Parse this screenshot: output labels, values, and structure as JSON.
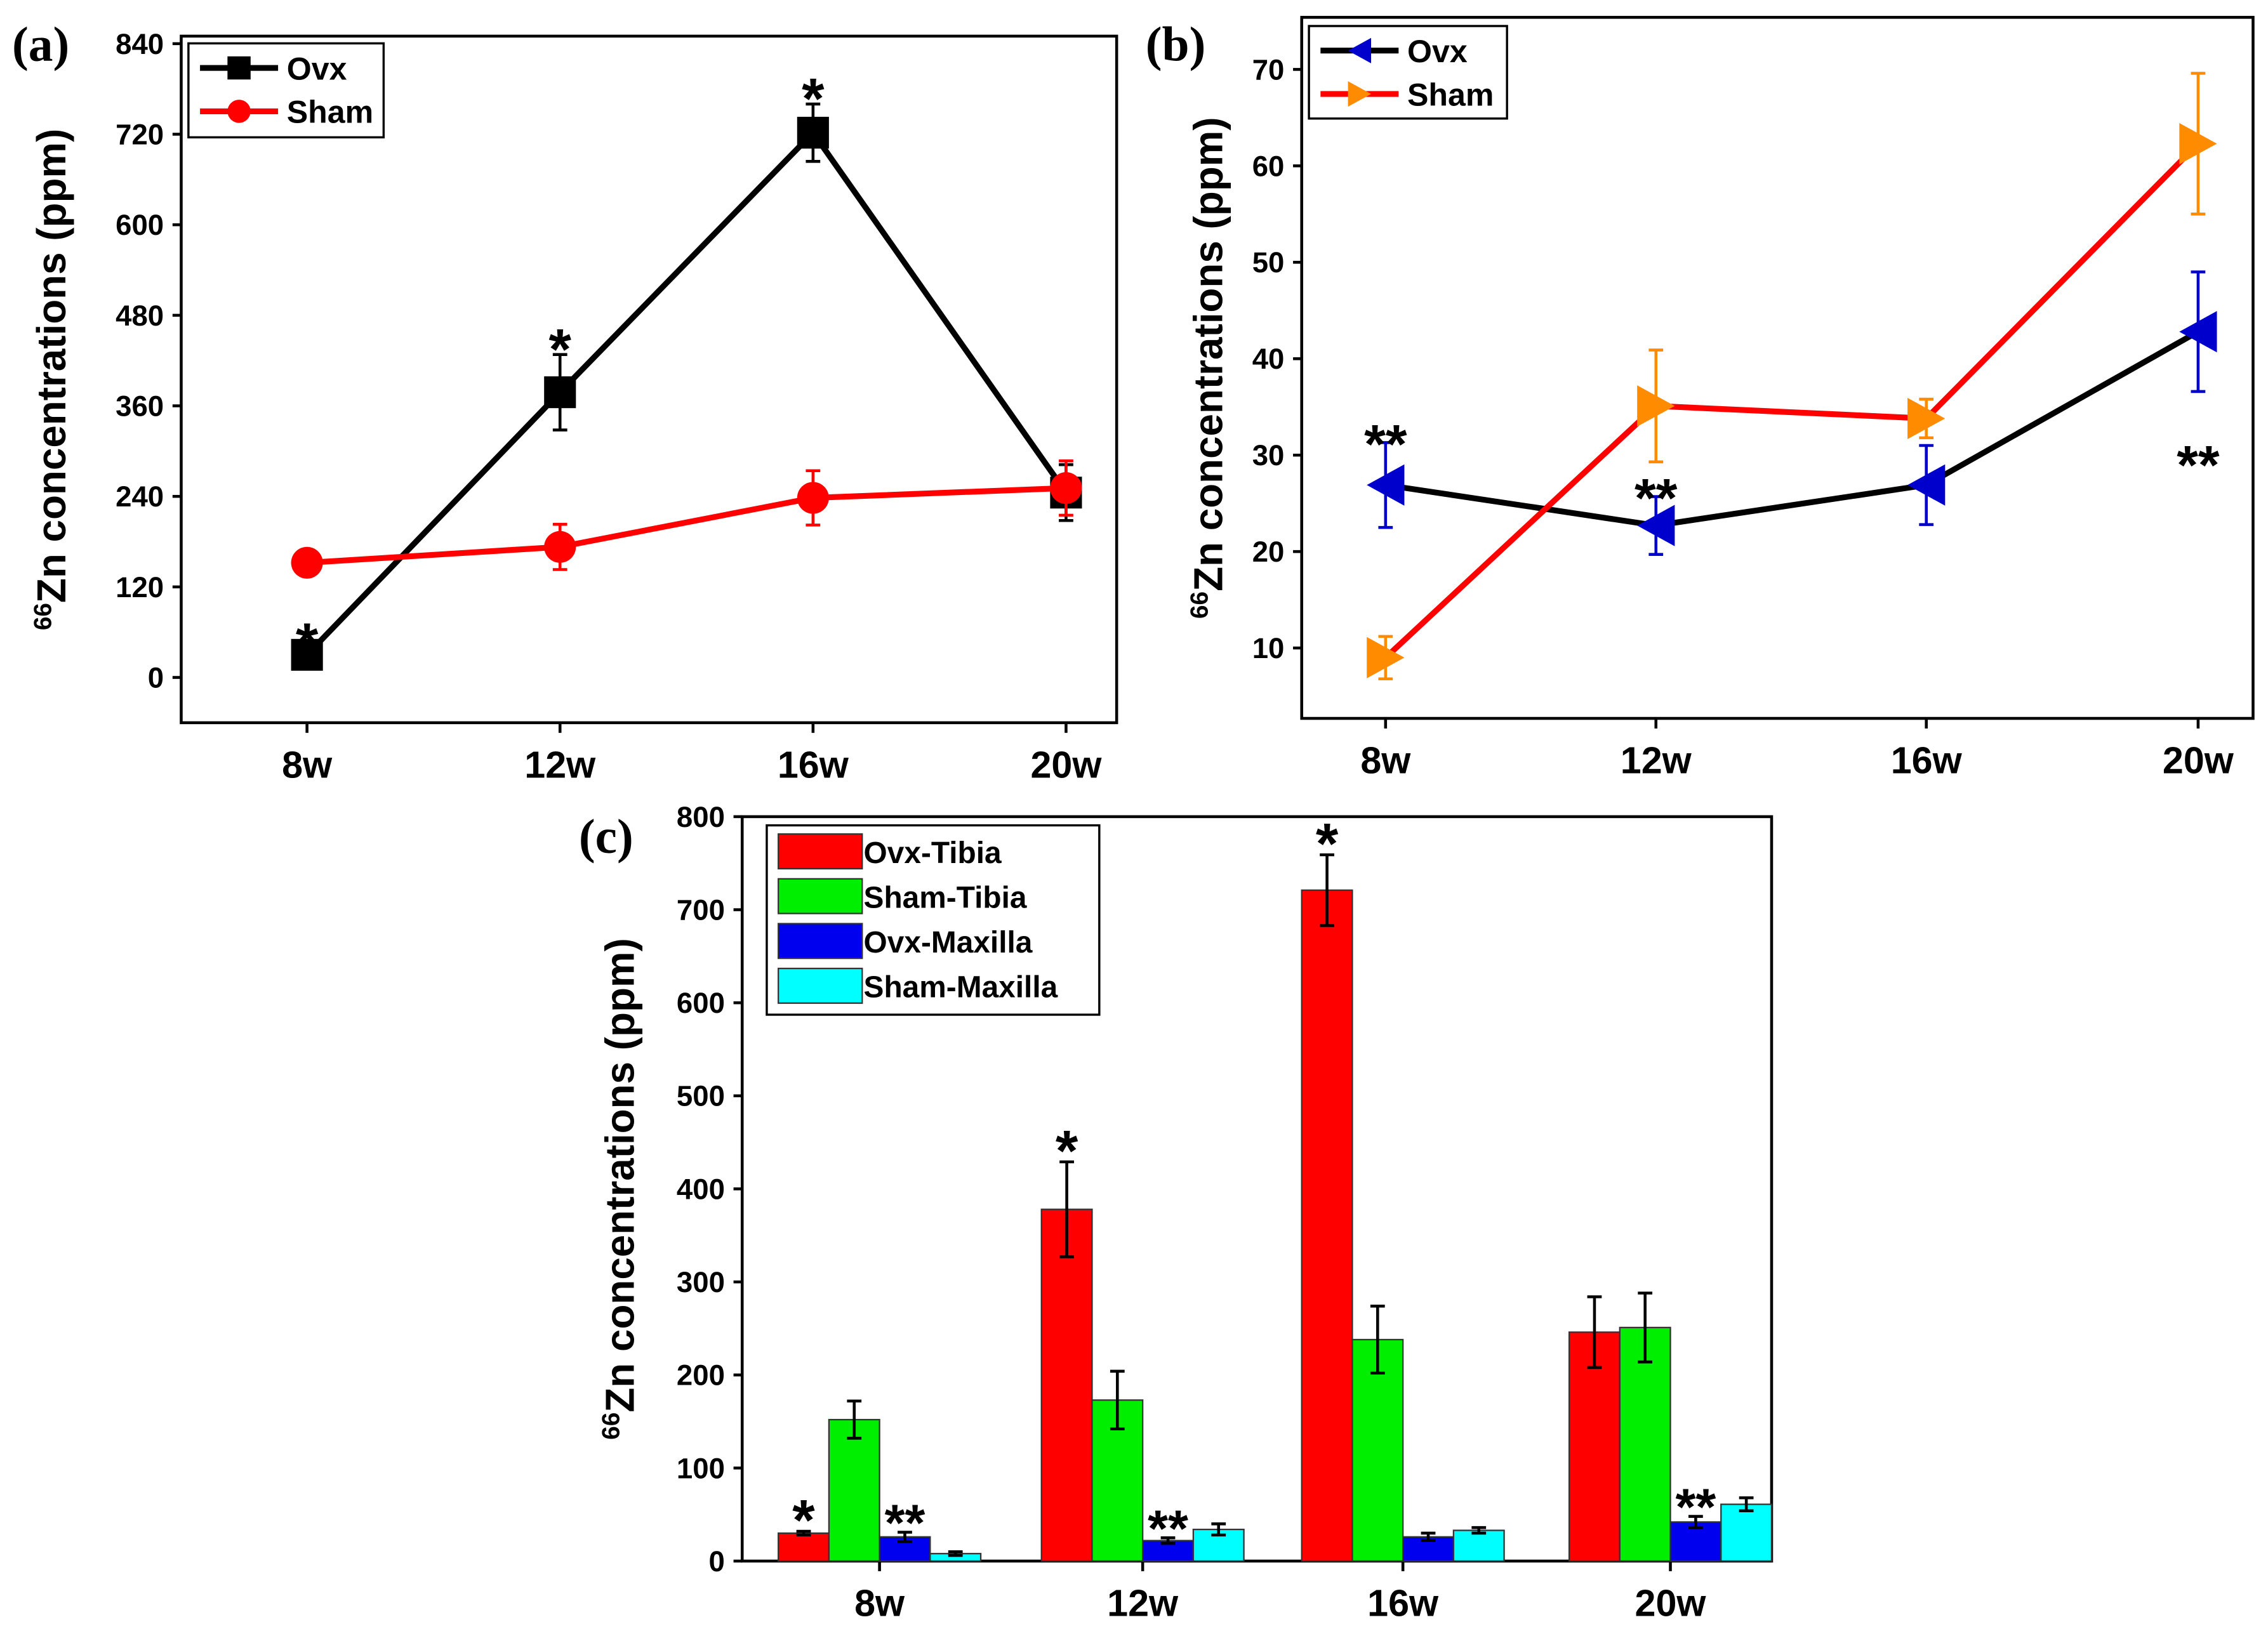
{
  "chart_data": [
    {
      "panel_label": "(a)",
      "type": "line",
      "categories": [
        "8w",
        "12w",
        "16w",
        "20w"
      ],
      "ylabel_sup": "66",
      "ylabel": "Zn concentrations (ppm)",
      "xlabel": "",
      "ylim": [
        -60,
        850
      ],
      "yticks": [
        0,
        120,
        240,
        360,
        480,
        600,
        720,
        840
      ],
      "legend_position": "top-left",
      "series": [
        {
          "name": "Ovx",
          "color": "#000000",
          "marker": "square",
          "marker_color": "#000000",
          "values": [
            30,
            378,
            722,
            245
          ],
          "errors": [
            8,
            50,
            38,
            37
          ],
          "annotations": [
            "*",
            "*",
            "*",
            ""
          ]
        },
        {
          "name": "Sham",
          "color": "#ff0000",
          "marker": "circle",
          "marker_color": "#ff0000",
          "values": [
            152,
            173,
            238,
            251
          ],
          "errors": [
            10,
            30,
            36,
            36
          ],
          "annotations": [
            "",
            "",
            "",
            ""
          ]
        }
      ]
    },
    {
      "panel_label": "(b)",
      "type": "line",
      "categories": [
        "8w",
        "12w",
        "16w",
        "20w"
      ],
      "ylabel_sup": "66",
      "ylabel": "Zn concentrations (ppm)",
      "xlabel": "",
      "ylim": [
        2.7,
        75.4
      ],
      "yticks": [
        10,
        20,
        30,
        40,
        50,
        60,
        70
      ],
      "legend_position": "top-left",
      "series": [
        {
          "name": "Ovx",
          "color": "#000000",
          "marker": "triangle-left",
          "marker_color": "#0000cc",
          "values": [
            26.9,
            22.7,
            26.9,
            42.8
          ],
          "errors": [
            4.4,
            3.0,
            4.1,
            6.2
          ],
          "annotations": [
            "**",
            "**",
            "",
            "**"
          ]
        },
        {
          "name": "Sham",
          "color": "#ff0000",
          "marker": "triangle-right",
          "marker_color": "#ff8c00",
          "values": [
            9.0,
            35.1,
            33.8,
            62.3
          ],
          "errors": [
            2.2,
            5.8,
            2.0,
            7.3
          ],
          "annotations": [
            "",
            "",
            "",
            ""
          ]
        }
      ]
    },
    {
      "panel_label": "(c)",
      "type": "bar",
      "categories": [
        "8w",
        "12w",
        "16w",
        "20w"
      ],
      "ylabel_sup": "66",
      "ylabel": "Zn concentrations (ppm)",
      "xlabel": "",
      "ylim": [
        0,
        800
      ],
      "yticks": [
        0,
        100,
        200,
        300,
        400,
        500,
        600,
        700,
        800
      ],
      "legend_position": "top-left",
      "series": [
        {
          "name": "Ovx-Tibia",
          "color": "#ff0000",
          "values": [
            30,
            378,
            721,
            246
          ],
          "errors": [
            2,
            51,
            38,
            38
          ],
          "annotations": [
            "*",
            "*",
            "*",
            ""
          ]
        },
        {
          "name": "Sham-Tibia",
          "color": "#00ee00",
          "values": [
            152,
            173,
            238,
            251
          ],
          "errors": [
            20,
            31,
            36,
            37
          ],
          "annotations": [
            "",
            "",
            "",
            ""
          ]
        },
        {
          "name": "Ovx-Maxilla",
          "color": "#0000ee",
          "values": [
            26,
            22,
            26,
            42
          ],
          "errors": [
            5,
            3,
            4,
            6
          ],
          "annotations": [
            "**",
            "**",
            "",
            "**"
          ]
        },
        {
          "name": "Sham-Maxilla",
          "color": "#00ffff",
          "values": [
            8,
            34,
            33,
            61
          ],
          "errors": [
            2,
            6,
            3,
            7
          ],
          "annotations": [
            "",
            "",
            "",
            ""
          ]
        }
      ]
    }
  ]
}
